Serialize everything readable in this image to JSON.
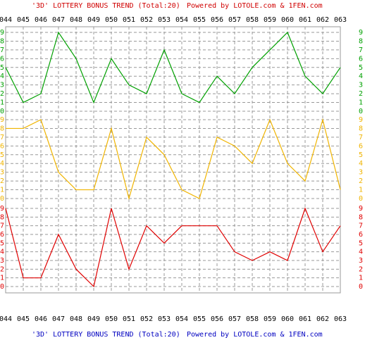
{
  "header": {
    "title": "'3D' LOTTERY BONUS TREND (Total:20)",
    "credit": "Powered by LOTOLE.com & 1FEN.com"
  },
  "footer": {
    "title": "'3D' LOTTERY BONUS TREND (Total:20)",
    "credit": "Powered by LOTOLE.com & 1FEN.com"
  },
  "chart_data": {
    "type": "line",
    "categories": [
      "044",
      "045",
      "046",
      "047",
      "048",
      "049",
      "050",
      "051",
      "052",
      "053",
      "054",
      "055",
      "056",
      "057",
      "058",
      "059",
      "060",
      "061",
      "062",
      "063"
    ],
    "panels": [
      {
        "color": "#00a000",
        "values": [
          5,
          1,
          2,
          9,
          6,
          1,
          6,
          3,
          2,
          7,
          2,
          1,
          4,
          2,
          5,
          7,
          9,
          4,
          2,
          5
        ],
        "ylim": [
          0,
          9
        ],
        "yticks": [
          0,
          1,
          2,
          3,
          4,
          5,
          6,
          7,
          8,
          9
        ]
      },
      {
        "color": "#f0b400",
        "values": [
          8,
          8,
          9,
          3,
          1,
          1,
          8,
          0,
          7,
          5,
          1,
          0,
          7,
          6,
          4,
          9,
          4,
          2,
          9,
          1
        ],
        "ylim": [
          0,
          9
        ],
        "yticks": [
          0,
          1,
          2,
          3,
          4,
          5,
          6,
          7,
          8,
          9
        ]
      },
      {
        "color": "#e00000",
        "values": [
          9,
          1,
          1,
          6,
          2,
          0,
          9,
          2,
          7,
          5,
          7,
          7,
          7,
          4,
          3,
          4,
          3,
          9,
          4,
          7
        ],
        "ylim": [
          0,
          9
        ],
        "yticks": [
          0,
          1,
          2,
          3,
          4,
          5,
          6,
          7,
          8,
          9
        ]
      }
    ]
  }
}
